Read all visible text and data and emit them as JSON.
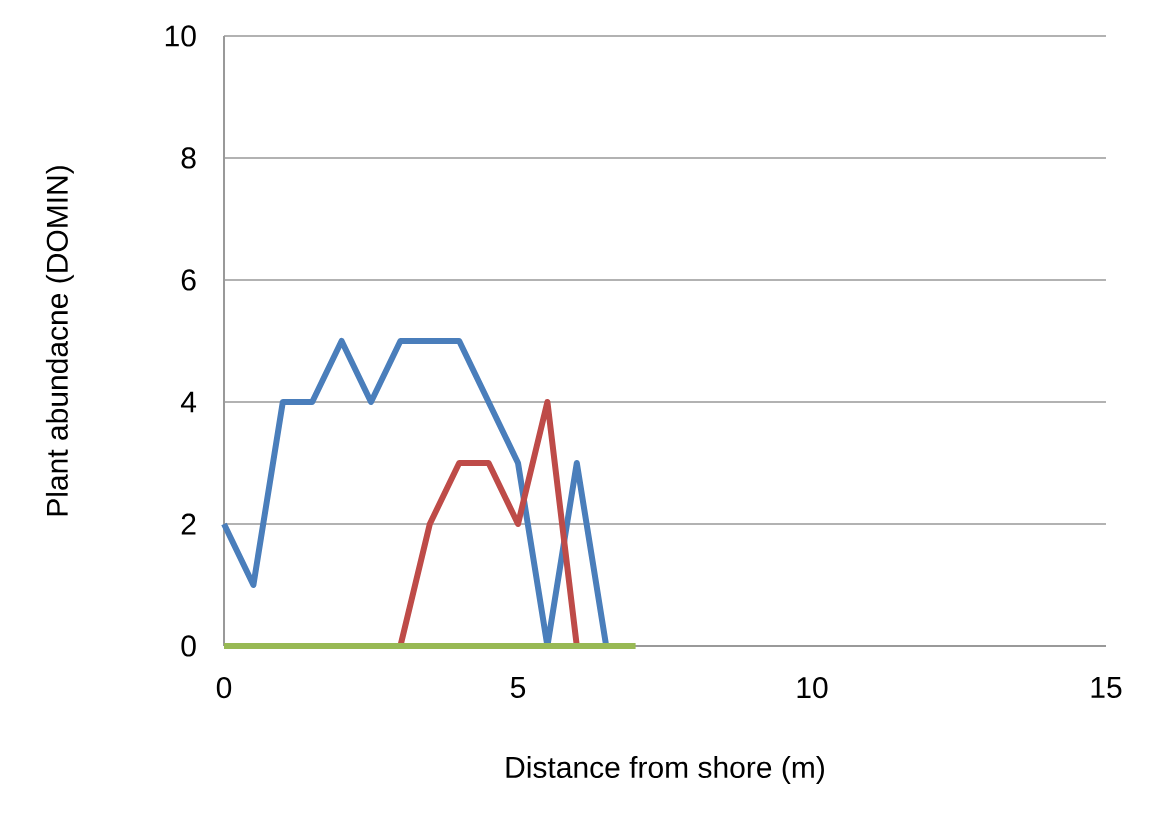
{
  "chart_data": {
    "type": "line",
    "xlabel": "Distance from shore (m)",
    "ylabel": "Plant abundacne (DOMIN)",
    "xlim": [
      0,
      15
    ],
    "xticks": [
      0,
      5,
      10,
      15
    ],
    "ylim": [
      0,
      10
    ],
    "yticks": [
      0,
      2,
      4,
      6,
      8,
      10
    ],
    "grid": "y",
    "marker": "none",
    "line_style": "solid",
    "series": [
      {
        "color": "#4a7ebb",
        "x": [
          0,
          0.5,
          1,
          1.5,
          2,
          2.5,
          3,
          3.5,
          4,
          4.5,
          5,
          5.5,
          6,
          6.5
        ],
        "values": [
          2,
          1,
          4,
          4,
          5,
          4,
          5,
          5,
          5,
          4,
          3,
          0,
          3,
          0
        ]
      },
      {
        "color": "#be4b48",
        "x": [
          3,
          3.5,
          4,
          4.5,
          5,
          5.5,
          6
        ],
        "values": [
          0,
          2,
          3,
          3,
          2,
          4,
          0
        ]
      },
      {
        "color": "#98b954",
        "x": [
          0,
          0.5,
          1,
          1.5,
          2,
          2.5,
          3,
          3.5,
          4,
          4.5,
          5,
          5.5,
          6,
          6.5,
          7
        ],
        "values": [
          0,
          0,
          0,
          0,
          0,
          0,
          0,
          0,
          0,
          0,
          0,
          0,
          0,
          0,
          0
        ]
      }
    ]
  }
}
